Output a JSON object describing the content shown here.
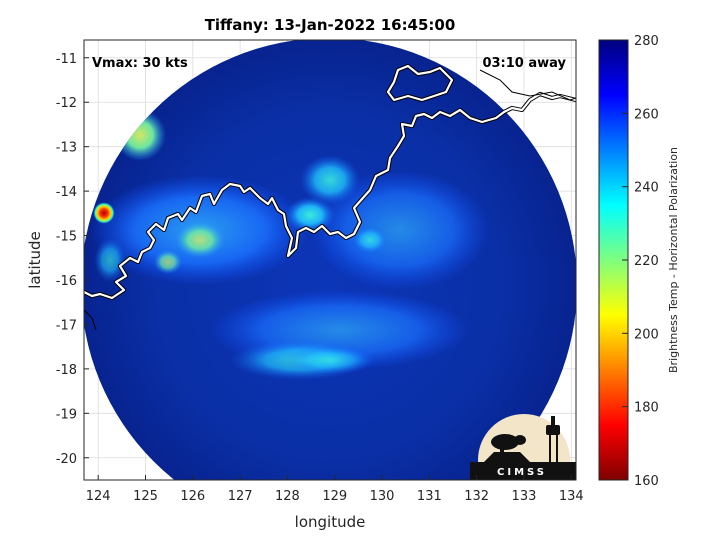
{
  "title": "Tiffany: 13-Jan-2022 16:45:00",
  "annotations": {
    "vmax": "Vmax: 30 kts",
    "time_away": "03:10 away"
  },
  "axes": {
    "xlabel": "longitude",
    "ylabel": "latitude",
    "xlim": [
      123.7,
      134.1
    ],
    "ylim": [
      -20.5,
      -10.6
    ],
    "xticks": [
      "124",
      "125",
      "126",
      "127",
      "128",
      "129",
      "130",
      "131",
      "132",
      "133",
      "134"
    ],
    "yticks": [
      "-11",
      "-12",
      "-13",
      "-14",
      "-15",
      "-16",
      "-17",
      "-18",
      "-19",
      "-20"
    ],
    "grid": true
  },
  "colorbar": {
    "label": "Brightness Temp - Horizontal Polarization",
    "range": [
      160,
      280
    ],
    "ticks": [
      "280",
      "260",
      "240",
      "220",
      "200",
      "180",
      "160"
    ],
    "colormap": "jet"
  },
  "logo": {
    "text": "CIMSS"
  },
  "colors": {
    "background_cold": "#0a2fa0",
    "ocean": "#08208f",
    "coast": "#ffffff"
  },
  "chart_data": {
    "type": "heatmap",
    "title": "Tiffany: 13-Jan-2022 16:45:00",
    "xlabel": "longitude",
    "ylabel": "latitude",
    "xlim": [
      123.7,
      134.1
    ],
    "ylim": [
      -20.5,
      -10.6
    ],
    "swath_center": [
      129.0,
      -15.6
    ],
    "swath_radius_deg": 4.8,
    "hotspots": [
      {
        "lon": 124.15,
        "lat": -14.45,
        "value": 175
      },
      {
        "lon": 124.8,
        "lat": -12.8,
        "value": 222
      },
      {
        "lon": 125.4,
        "lat": -15.5,
        "value": 235
      },
      {
        "lon": 126.0,
        "lat": -15.0,
        "value": 240
      },
      {
        "lon": 128.5,
        "lat": -14.5,
        "value": 240
      },
      {
        "lon": 129.2,
        "lat": -13.9,
        "value": 245
      },
      {
        "lon": 128.0,
        "lat": -17.8,
        "value": 248
      }
    ]
  }
}
